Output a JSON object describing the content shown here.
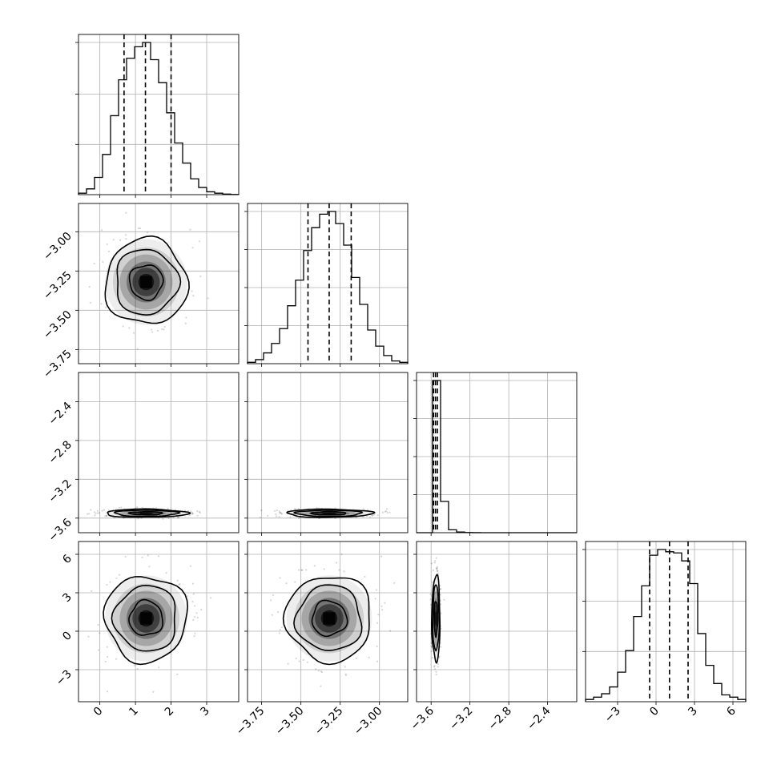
{
  "chart_data": {
    "type": "corner",
    "title": "",
    "parameters": [
      {
        "index": 0,
        "name": "",
        "range": [
          -0.6,
          3.9
        ],
        "ticks": [
          0,
          1,
          2,
          3
        ],
        "tick_labels": [
          "0",
          "1",
          "2",
          "3"
        ],
        "mean": 1.3,
        "sd": 0.55,
        "quantiles": [
          0.68,
          1.28,
          2.0
        ],
        "histogram": {
          "bin_edges": [
            -0.6,
            -0.375,
            -0.15,
            0.075,
            0.3,
            0.525,
            0.75,
            0.975,
            1.2,
            1.425,
            1.65,
            1.875,
            2.1,
            2.325,
            2.55,
            2.775,
            3.0,
            3.225,
            3.45,
            3.675,
            3.9
          ],
          "counts": [
            1,
            4,
            12,
            28,
            55,
            80,
            95,
            103,
            106,
            94,
            78,
            57,
            36,
            22,
            11,
            5,
            2,
            1,
            0.4,
            0.1
          ]
        }
      },
      {
        "index": 1,
        "name": "",
        "range": [
          -3.84,
          -2.82
        ],
        "ticks": [
          -3.75,
          -3.5,
          -3.25,
          -3.0
        ],
        "tick_labels": [
          "−3.75",
          "−3.50",
          "−3.25",
          "−3.00"
        ],
        "mean": -3.32,
        "sd": 0.13,
        "quantiles": [
          -3.455,
          -3.32,
          -3.18
        ],
        "histogram": {
          "bin_edges": [
            -3.84,
            -3.789,
            -3.738,
            -3.687,
            -3.636,
            -3.585,
            -3.534,
            -3.483,
            -3.432,
            -3.381,
            -3.33,
            -3.279,
            -3.228,
            -3.177,
            -3.126,
            -3.075,
            -3.024,
            -2.973,
            -2.922,
            -2.871,
            -2.82
          ],
          "counts": [
            1,
            3,
            8,
            15,
            26,
            43,
            62,
            84,
            101,
            111,
            113,
            104,
            88,
            64,
            44,
            25,
            13,
            6,
            2,
            1
          ]
        }
      },
      {
        "index": 2,
        "name": "",
        "range": [
          -3.75,
          -2.1
        ],
        "ticks": [
          -3.6,
          -3.2,
          -2.8,
          -2.4
        ],
        "tick_labels": [
          "−3.6",
          "−3.2",
          "−2.8",
          "−2.4"
        ],
        "mean": -3.55,
        "sd": 0.02,
        "quantiles": [
          -3.575,
          -3.555,
          -3.535
        ],
        "histogram": {
          "bin_edges": [
            -3.75,
            -3.6675,
            -3.585,
            -3.5025,
            -3.42,
            -3.3375,
            -3.255,
            -3.1725,
            -3.09,
            -3.0075,
            -2.925,
            -2.8425,
            -2.76,
            -2.6775,
            -2.595,
            -2.5125,
            -2.43,
            -2.3475,
            -2.265,
            -2.1825,
            -2.1
          ],
          "counts": [
            0,
            0,
            2340,
            480,
            45,
            10,
            3,
            1,
            0,
            0,
            0,
            0,
            0,
            0,
            0,
            0,
            0,
            0,
            0,
            0
          ]
        }
      },
      {
        "index": 3,
        "name": "",
        "range": [
          -5.5,
          7.0
        ],
        "ticks": [
          -3,
          0,
          3,
          6
        ],
        "tick_labels": [
          "−3",
          "0",
          "3",
          "6"
        ],
        "mean": 1.0,
        "sd": 1.6,
        "quantiles": [
          -0.5,
          1.05,
          2.5
        ],
        "histogram": {
          "bin_edges": [
            -5.5,
            -4.875,
            -4.25,
            -3.625,
            -3.0,
            -2.375,
            -1.75,
            -1.125,
            -0.5,
            0.125,
            0.75,
            1.375,
            2.0,
            2.625,
            3.25,
            3.875,
            4.5,
            5.125,
            5.75,
            6.375,
            7.0
          ],
          "counts": [
            2,
            4,
            7,
            13,
            26,
            45,
            75,
            102,
            129,
            134,
            132,
            131,
            124,
            104,
            60,
            32,
            16,
            6,
            4,
            2
          ]
        }
      }
    ],
    "diagonal_hist_yticks": [
      [
        0.33,
        0.66,
        1.0
      ],
      [
        0.25,
        0.5,
        0.75,
        1.0
      ],
      [
        0.25,
        0.5,
        0.75,
        1.0
      ],
      [
        0.33,
        0.66,
        1.0
      ]
    ],
    "pairs": [
      {
        "x_param": 0,
        "y_param": 1,
        "correlation": 0.0,
        "contour_levels": [
          0.3,
          0.6,
          0.9
        ],
        "has_scatter": true,
        "has_density_shading": true
      },
      {
        "x_param": 0,
        "y_param": 2,
        "correlation": 0.0,
        "contour_levels": [
          0.3,
          0.6,
          0.9
        ],
        "has_scatter": true,
        "has_density_shading": true
      },
      {
        "x_param": 1,
        "y_param": 2,
        "correlation": 0.0,
        "contour_levels": [
          0.3,
          0.6,
          0.9
        ],
        "has_scatter": true,
        "has_density_shading": true
      },
      {
        "x_param": 0,
        "y_param": 3,
        "correlation": 0.0,
        "contour_levels": [
          0.3,
          0.6,
          0.9
        ],
        "has_scatter": true,
        "has_density_shading": true
      },
      {
        "x_param": 1,
        "y_param": 3,
        "correlation": 0.0,
        "contour_levels": [
          0.3,
          0.6,
          0.9
        ],
        "has_scatter": true,
        "has_density_shading": true
      },
      {
        "x_param": 2,
        "y_param": 3,
        "correlation": 0.0,
        "contour_levels": [
          0.3,
          0.6,
          0.9
        ],
        "has_scatter": true,
        "has_density_shading": true
      }
    ],
    "grid": true,
    "quantile_line_style": "dashed",
    "colors": {
      "line": "#000000",
      "grid": "#b0b0b0",
      "scatter": "#000000",
      "density": "#000000"
    }
  }
}
